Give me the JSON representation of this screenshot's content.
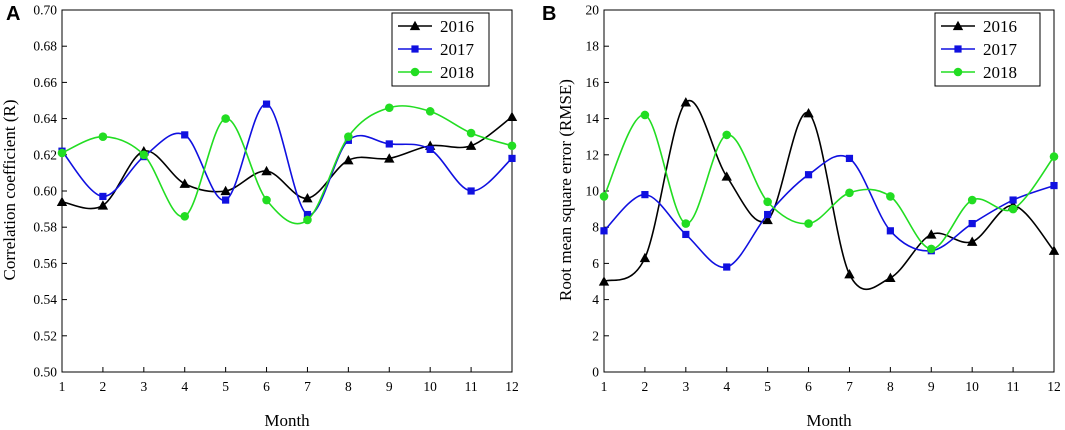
{
  "chart_data": [
    {
      "type": "line",
      "panel_label": "A",
      "xlabel": "Month",
      "ylabel": "Correlation coefficient (R)",
      "x": [
        1,
        2,
        3,
        4,
        5,
        6,
        7,
        8,
        9,
        10,
        11,
        12
      ],
      "xlim": [
        1,
        12
      ],
      "ylim": [
        0.5,
        0.7
      ],
      "xticks": [
        "1",
        "2",
        "3",
        "4",
        "5",
        "6",
        "7",
        "8",
        "9",
        "10",
        "11",
        "12"
      ],
      "yticks": [
        0.5,
        0.52,
        0.54,
        0.56,
        0.58,
        0.6,
        0.62,
        0.64,
        0.66,
        0.68,
        0.7
      ],
      "ytick_labels": [
        "0.50",
        "0.52",
        "0.54",
        "0.56",
        "0.58",
        "0.60",
        "0.62",
        "0.64",
        "0.66",
        "0.68",
        "0.70"
      ],
      "legend_position": "top-right",
      "series": [
        {
          "name": "2016",
          "color": "#000000",
          "marker": "triangle",
          "values": [
            0.594,
            0.592,
            0.622,
            0.604,
            0.6,
            0.611,
            0.596,
            0.617,
            0.618,
            0.625,
            0.625,
            0.641
          ]
        },
        {
          "name": "2017",
          "color": "#1010e0",
          "marker": "square",
          "values": [
            0.622,
            0.597,
            0.619,
            0.631,
            0.595,
            0.648,
            0.587,
            0.628,
            0.626,
            0.623,
            0.6,
            0.618
          ]
        },
        {
          "name": "2018",
          "color": "#22dd22",
          "marker": "circle",
          "values": [
            0.621,
            0.63,
            0.62,
            0.586,
            0.64,
            0.595,
            0.584,
            0.63,
            0.646,
            0.644,
            0.632,
            0.625
          ]
        }
      ]
    },
    {
      "type": "line",
      "panel_label": "B",
      "xlabel": "Month",
      "ylabel": "Root mean square error (RMSE)",
      "x": [
        1,
        2,
        3,
        4,
        5,
        6,
        7,
        8,
        9,
        10,
        11,
        12
      ],
      "xlim": [
        1,
        12
      ],
      "ylim": [
        0,
        20
      ],
      "xticks": [
        "1",
        "2",
        "3",
        "4",
        "5",
        "6",
        "7",
        "8",
        "9",
        "10",
        "11",
        "12"
      ],
      "yticks": [
        0,
        2,
        4,
        6,
        8,
        10,
        12,
        14,
        16,
        18,
        20
      ],
      "ytick_labels": [
        "0",
        "2",
        "4",
        "6",
        "8",
        "10",
        "12",
        "14",
        "16",
        "18",
        "20"
      ],
      "legend_position": "top-right",
      "series": [
        {
          "name": "2016",
          "color": "#000000",
          "marker": "triangle",
          "values": [
            5.0,
            6.3,
            14.9,
            10.8,
            8.4,
            14.3,
            5.4,
            5.2,
            7.6,
            7.2,
            9.2,
            6.7
          ]
        },
        {
          "name": "2017",
          "color": "#1010e0",
          "marker": "square",
          "values": [
            7.8,
            9.8,
            7.6,
            5.8,
            8.7,
            10.9,
            11.8,
            7.8,
            6.7,
            8.2,
            9.5,
            10.3
          ]
        },
        {
          "name": "2018",
          "color": "#22dd22",
          "marker": "circle",
          "values": [
            9.7,
            14.2,
            8.2,
            13.1,
            9.4,
            8.2,
            9.9,
            9.7,
            6.8,
            9.5,
            9.0,
            11.9
          ]
        }
      ]
    }
  ]
}
